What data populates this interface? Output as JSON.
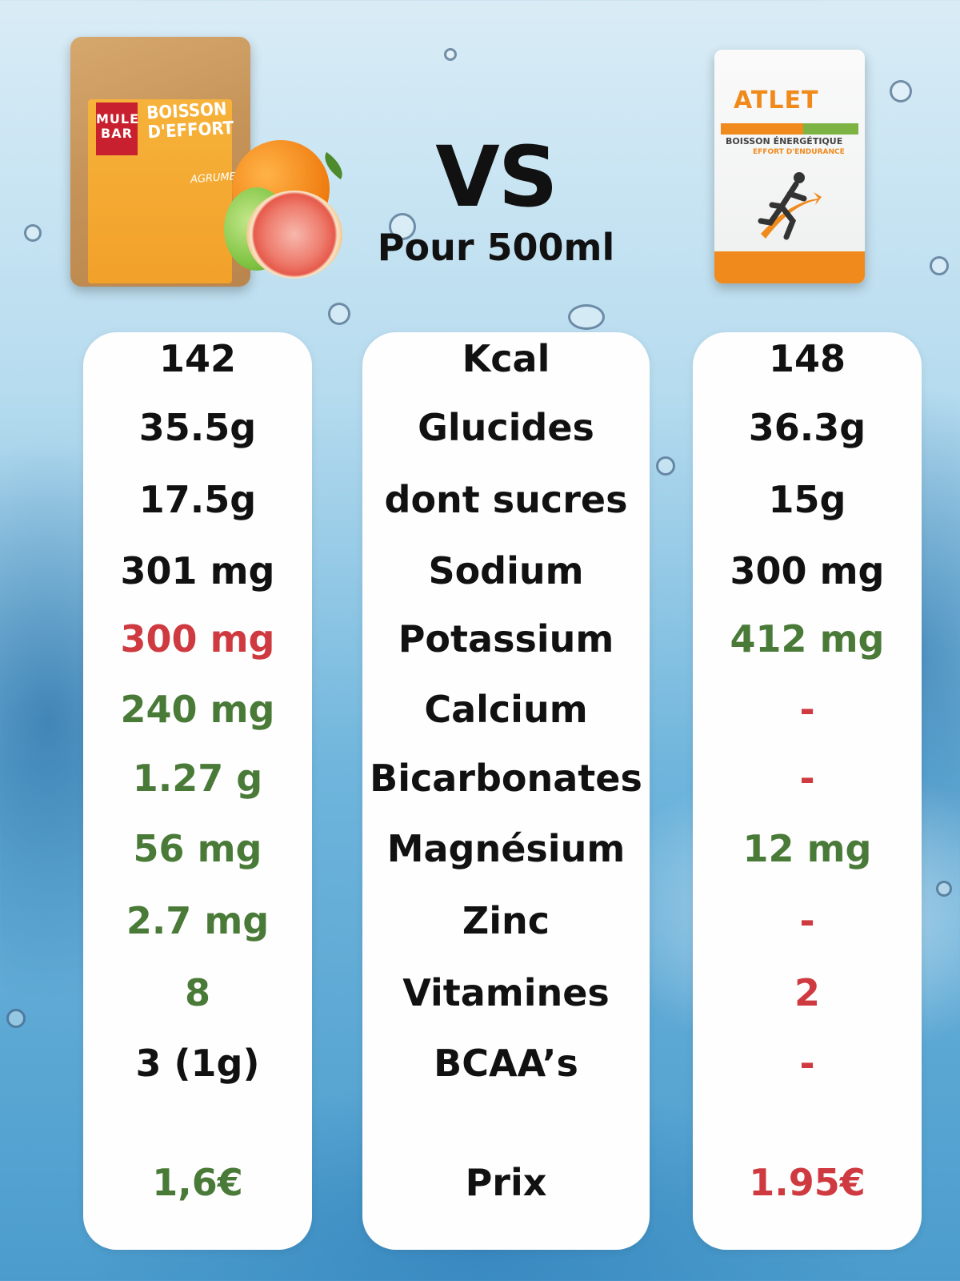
{
  "header": {
    "vs": "VS",
    "per": "Pour 500ml"
  },
  "products": {
    "left": {
      "brand_logo": "MULE BAR",
      "title": "BOISSON D'EFFORT",
      "flavor": "AGRUMES"
    },
    "right": {
      "brand_logo": "ATLET",
      "line1": "BOISSON ÉNERGÉTIQUE",
      "line2": "EFFORT D'ENDURANCE"
    }
  },
  "colors": {
    "black": "#111111",
    "red": "#cf3a40",
    "green": "#4a7a38"
  },
  "rows": [
    {
      "label": "Kcal",
      "left": "142",
      "left_color": "black",
      "right": "148",
      "right_color": "black"
    },
    {
      "label": "Glucides",
      "left": "35.5g",
      "left_color": "black",
      "right": "36.3g",
      "right_color": "black"
    },
    {
      "label": "dont sucres",
      "left": "17.5g",
      "left_color": "black",
      "right": "15g",
      "right_color": "black"
    },
    {
      "label": "Sodium",
      "left": "301 mg",
      "left_color": "black",
      "right": "300 mg",
      "right_color": "black"
    },
    {
      "label": "Potassium",
      "left": "300 mg",
      "left_color": "red",
      "right": "412 mg",
      "right_color": "green"
    },
    {
      "label": "Calcium",
      "left": "240 mg",
      "left_color": "green",
      "right": "-",
      "right_color": "red"
    },
    {
      "label": "Bicarbonates",
      "left": "1.27 g",
      "left_color": "green",
      "right": "-",
      "right_color": "red"
    },
    {
      "label": "Magnésium",
      "left": "56 mg",
      "left_color": "green",
      "right": "12 mg",
      "right_color": "green"
    },
    {
      "label": "Zinc",
      "left": "2.7 mg",
      "left_color": "green",
      "right": "-",
      "right_color": "red"
    },
    {
      "label": "Vitamines",
      "left": "8",
      "left_color": "green",
      "right": "2",
      "right_color": "red"
    },
    {
      "label": "BCAA’s",
      "left": "3 (1g)",
      "left_color": "black",
      "right": "-",
      "right_color": "red"
    },
    {
      "label": "Prix",
      "left": "1,6€",
      "left_color": "green",
      "right": "1.95€",
      "right_color": "red"
    }
  ]
}
